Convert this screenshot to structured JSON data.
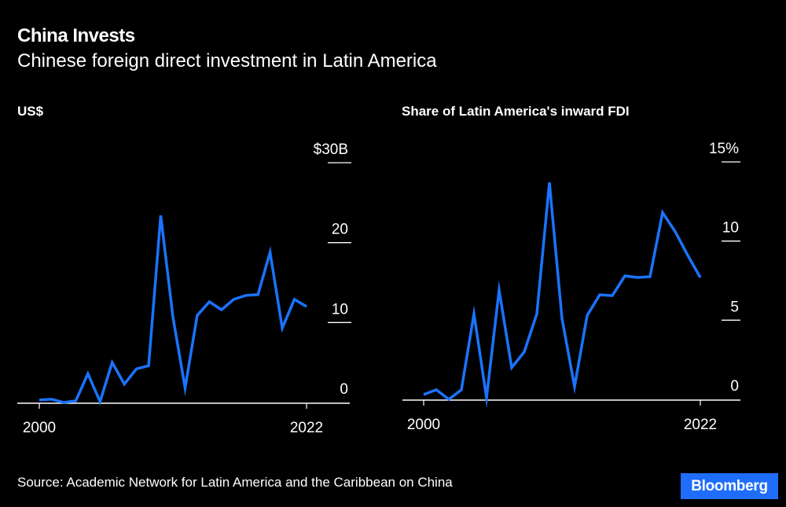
{
  "header": {
    "title": "China Invests",
    "subtitle": "Chinese foreign direct investment in Latin America"
  },
  "footer": {
    "source": "Source: Academic Network for Latin America and the Caribbean on China",
    "logo": "Bloomberg"
  },
  "colors": {
    "line": "#1a73ff",
    "background": "#000000",
    "text": "#ffffff"
  },
  "chart_data": [
    {
      "type": "line",
      "title": "US$",
      "x": [
        2000,
        2001,
        2002,
        2003,
        2004,
        2005,
        2006,
        2007,
        2008,
        2009,
        2010,
        2011,
        2012,
        2013,
        2014,
        2015,
        2016,
        2017,
        2018,
        2019,
        2020,
        2021,
        2022
      ],
      "values": [
        0.3,
        0.4,
        0,
        0.2,
        3.6,
        0.1,
        5.0,
        2.3,
        4.2,
        4.6,
        23.4,
        10.7,
        1.8,
        10.9,
        12.6,
        11.6,
        12.9,
        13.4,
        13.5,
        18.8,
        9.3,
        12.9,
        12.0
      ],
      "xlim": [
        2000,
        2022
      ],
      "ylim": [
        0,
        30
      ],
      "x_tick_labels": [
        "2000",
        "2022"
      ],
      "y_tick_labels": [
        "0",
        "10",
        "20",
        "$30B"
      ],
      "grid": false
    },
    {
      "type": "line",
      "title": "Share of Latin America's inward FDI",
      "x": [
        2000,
        2001,
        2002,
        2003,
        2004,
        2005,
        2006,
        2007,
        2008,
        2009,
        2010,
        2011,
        2012,
        2013,
        2014,
        2015,
        2016,
        2017,
        2018,
        2019,
        2020,
        2021,
        2022
      ],
      "values": [
        0.3,
        0.6,
        0,
        0.6,
        5.4,
        0.1,
        6.9,
        2.0,
        3.0,
        5.4,
        13.7,
        5.1,
        0.8,
        5.3,
        6.6,
        6.55,
        7.8,
        7.7,
        7.75,
        11.8,
        10.6,
        9.1,
        7.7
      ],
      "xlim": [
        2000,
        2022
      ],
      "ylim": [
        0,
        15
      ],
      "x_tick_labels": [
        "2000",
        "2022"
      ],
      "y_tick_labels": [
        "0",
        "5",
        "10",
        "15%"
      ],
      "grid": false
    }
  ]
}
